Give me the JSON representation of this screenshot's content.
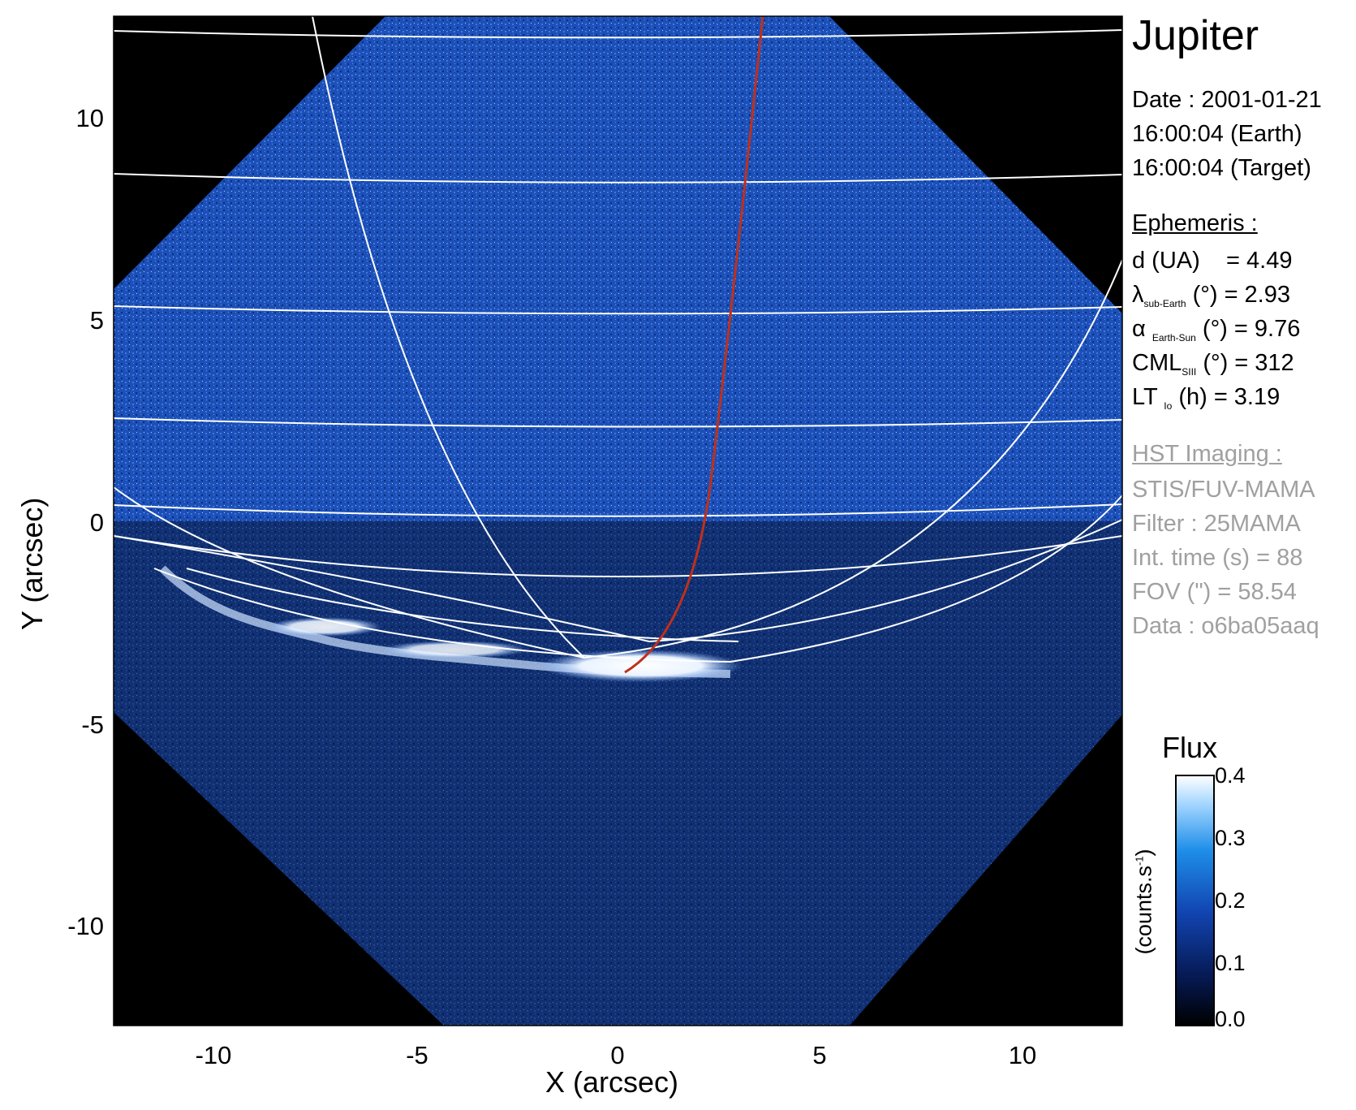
{
  "title": "Jupiter",
  "observation": {
    "date_line": "Date : 2001-01-21",
    "time_earth": "16:00:04 (Earth)",
    "time_target": "16:00:04 (Target)"
  },
  "ephemeris": {
    "header": "Ephemeris :",
    "d_label": "d (UA)",
    "d_value": "= 4.49",
    "lambda_sym": "λ",
    "lambda_sub": "sub-Earth",
    "lambda_rest": "(°) = 2.93",
    "alpha_sym": "α",
    "alpha_sub": "Earth-Sun",
    "alpha_rest": "(°) = 9.76",
    "cml_sym": "CML",
    "cml_sub": "SIII",
    "cml_rest": "(°) = 312",
    "lt_sym": "LT",
    "lt_sub": "Io",
    "lt_rest": "(h) = 3.19"
  },
  "imaging": {
    "header": "HST Imaging :",
    "instrument": "STIS/FUV-MAMA",
    "filter": "Filter : 25MAMA",
    "int_time": "Int. time (s) = 88",
    "fov": "FOV (\") = 58.54",
    "data": "Data : o6ba05aaq"
  },
  "axes": {
    "xlabel": "X (arcsec)",
    "ylabel": "Y (arcsec)",
    "xticks": [
      "-10",
      "-5",
      "0",
      "5",
      "10"
    ],
    "yticks": [
      "10",
      "5",
      "0",
      "-5",
      "-10"
    ],
    "xlim": [
      -12.5,
      12.5
    ],
    "ylim": [
      -12.5,
      12.5
    ]
  },
  "colorbar": {
    "title": "Flux",
    "unit": "(counts.s",
    "unit_sup": "-1",
    "unit_close": ")",
    "ticks": [
      "0.4",
      "0.3",
      "0.2",
      "0.1",
      "0.0"
    ]
  },
  "colors": {
    "background_sky": "#000000",
    "detector_blue": "#1a4fb4",
    "aurora": "#ffffff",
    "grid": "#ffffff",
    "footprint": "#c0301a"
  }
}
